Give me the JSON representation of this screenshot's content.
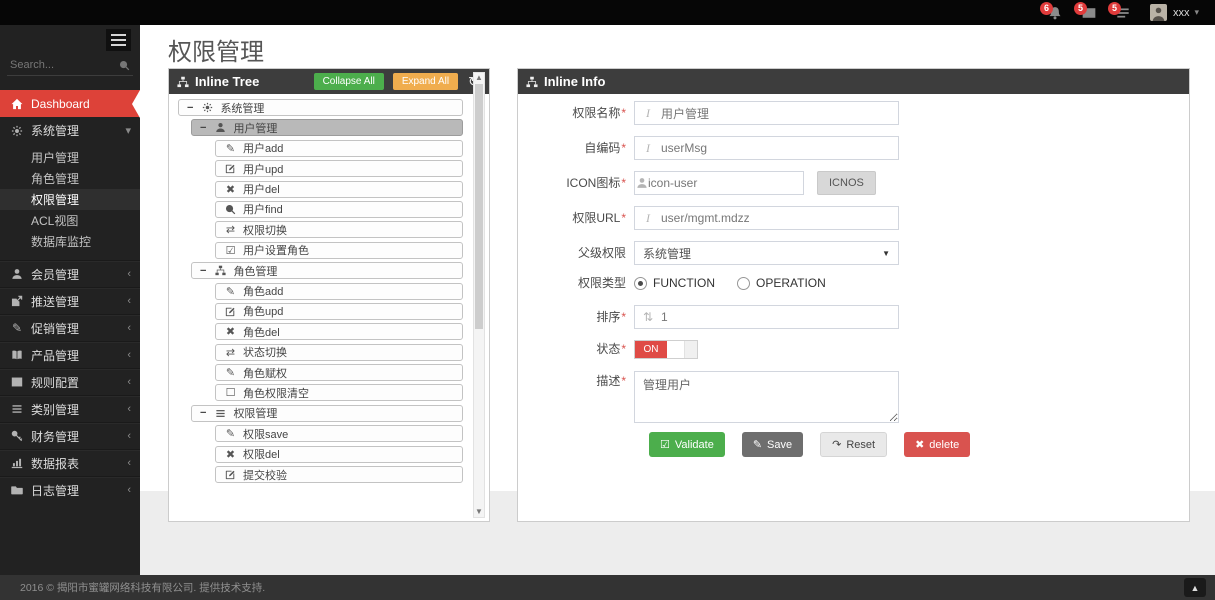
{
  "navbar": {
    "notifications": [
      {
        "icon": "bell",
        "count": "6"
      },
      {
        "icon": "envelope",
        "count": "5"
      },
      {
        "icon": "tasks",
        "count": "5"
      }
    ],
    "user": {
      "name": "xxx"
    }
  },
  "sidebar": {
    "search": {
      "placeholder": "Search..."
    },
    "menu": [
      {
        "label": "Dashboard",
        "icon": "home",
        "type": "active-red"
      },
      {
        "label": "系统管理",
        "icon": "gear",
        "type": "group-open",
        "children": [
          {
            "label": "用户管理",
            "active": false
          },
          {
            "label": "角色管理",
            "active": false
          },
          {
            "label": "权限管理",
            "active": true
          },
          {
            "label": "ACL视图",
            "active": false
          },
          {
            "label": "数据库监控",
            "active": false
          }
        ]
      },
      {
        "label": "会员管理",
        "icon": "user",
        "type": "group"
      },
      {
        "label": "推送管理",
        "icon": "send",
        "type": "group"
      },
      {
        "label": "促销管理",
        "icon": "pencil",
        "type": "group"
      },
      {
        "label": "产品管理",
        "icon": "book",
        "type": "group"
      },
      {
        "label": "规则配置",
        "icon": "table",
        "type": "group"
      },
      {
        "label": "类别管理",
        "icon": "list",
        "type": "group"
      },
      {
        "label": "财务管理",
        "icon": "key",
        "type": "group"
      },
      {
        "label": "数据报表",
        "icon": "chart",
        "type": "group"
      },
      {
        "label": "日志管理",
        "icon": "folder",
        "type": "group"
      }
    ]
  },
  "page": {
    "title": "权限管理"
  },
  "tree_panel": {
    "title": "Inline Tree",
    "collapse_label": "Collapse All",
    "expand_label": "Expand All",
    "nodes": [
      {
        "label": "系统管理",
        "icon": "gear",
        "level": 0,
        "toggle": "−",
        "selected": false
      },
      {
        "label": "用户管理",
        "icon": "user",
        "level": 1,
        "toggle": "−",
        "selected": true
      },
      {
        "label": "用户add",
        "icon": "pencil",
        "level": 2
      },
      {
        "label": "用户upd",
        "icon": "edit",
        "level": 2
      },
      {
        "label": "用户del",
        "icon": "x",
        "level": 2
      },
      {
        "label": "用户find",
        "icon": "search",
        "level": 2
      },
      {
        "label": "权限切换",
        "icon": "repeat",
        "level": 2
      },
      {
        "label": "用户设置角色",
        "icon": "check-square",
        "level": 2
      },
      {
        "label": "角色管理",
        "icon": "sitemap",
        "level": 1,
        "toggle": "−",
        "selected": false
      },
      {
        "label": "角色add",
        "icon": "pencil",
        "level": 2
      },
      {
        "label": "角色upd",
        "icon": "edit",
        "level": 2
      },
      {
        "label": "角色del",
        "icon": "x",
        "level": 2
      },
      {
        "label": "状态切换",
        "icon": "repeat",
        "level": 2
      },
      {
        "label": "角色赋权",
        "icon": "pencil",
        "level": 2
      },
      {
        "label": "角色权限清空",
        "icon": "square",
        "level": 2
      },
      {
        "label": "权限管理",
        "icon": "list",
        "level": 1,
        "toggle": "−",
        "selected": false
      },
      {
        "label": "权限save",
        "icon": "pencil",
        "level": 2
      },
      {
        "label": "权限del",
        "icon": "x",
        "level": 2
      },
      {
        "label": "提交校验",
        "icon": "edit",
        "level": 2
      }
    ]
  },
  "info_panel": {
    "title": "Inline Info",
    "required_mark": "*",
    "fields": {
      "name": {
        "label": "权限名称",
        "value": "用户管理"
      },
      "code": {
        "label": "自编码",
        "value": "userMsg"
      },
      "icon": {
        "label": "ICON图标",
        "value": "icon-user",
        "button": "ICNOS"
      },
      "url": {
        "label": "权限URL",
        "value": "user/mgmt.mdzz"
      },
      "parent": {
        "label": "父级权限",
        "value": "系统管理"
      },
      "type": {
        "label": "权限类型",
        "option1": "FUNCTION",
        "option2": "OPERATION",
        "selected": "FUNCTION"
      },
      "sort": {
        "label": "排序",
        "value": "1"
      },
      "status": {
        "label": "状态",
        "value": "ON"
      },
      "desc": {
        "label": "描述",
        "value": "管理用户"
      }
    },
    "buttons": {
      "validate": "Validate",
      "save": "Save",
      "reset": "Reset",
      "delete": "delete"
    }
  },
  "footer": {
    "copyright": "2016 © 揭阳市蜜罐网络科技有限公司. 提供技术支持."
  },
  "colors": {
    "accent_red": "#dd4239",
    "green": "#4cae4c",
    "orange": "#f0ad4e",
    "delete_red": "#d9534f",
    "panel_header": "#3d3d3d"
  }
}
